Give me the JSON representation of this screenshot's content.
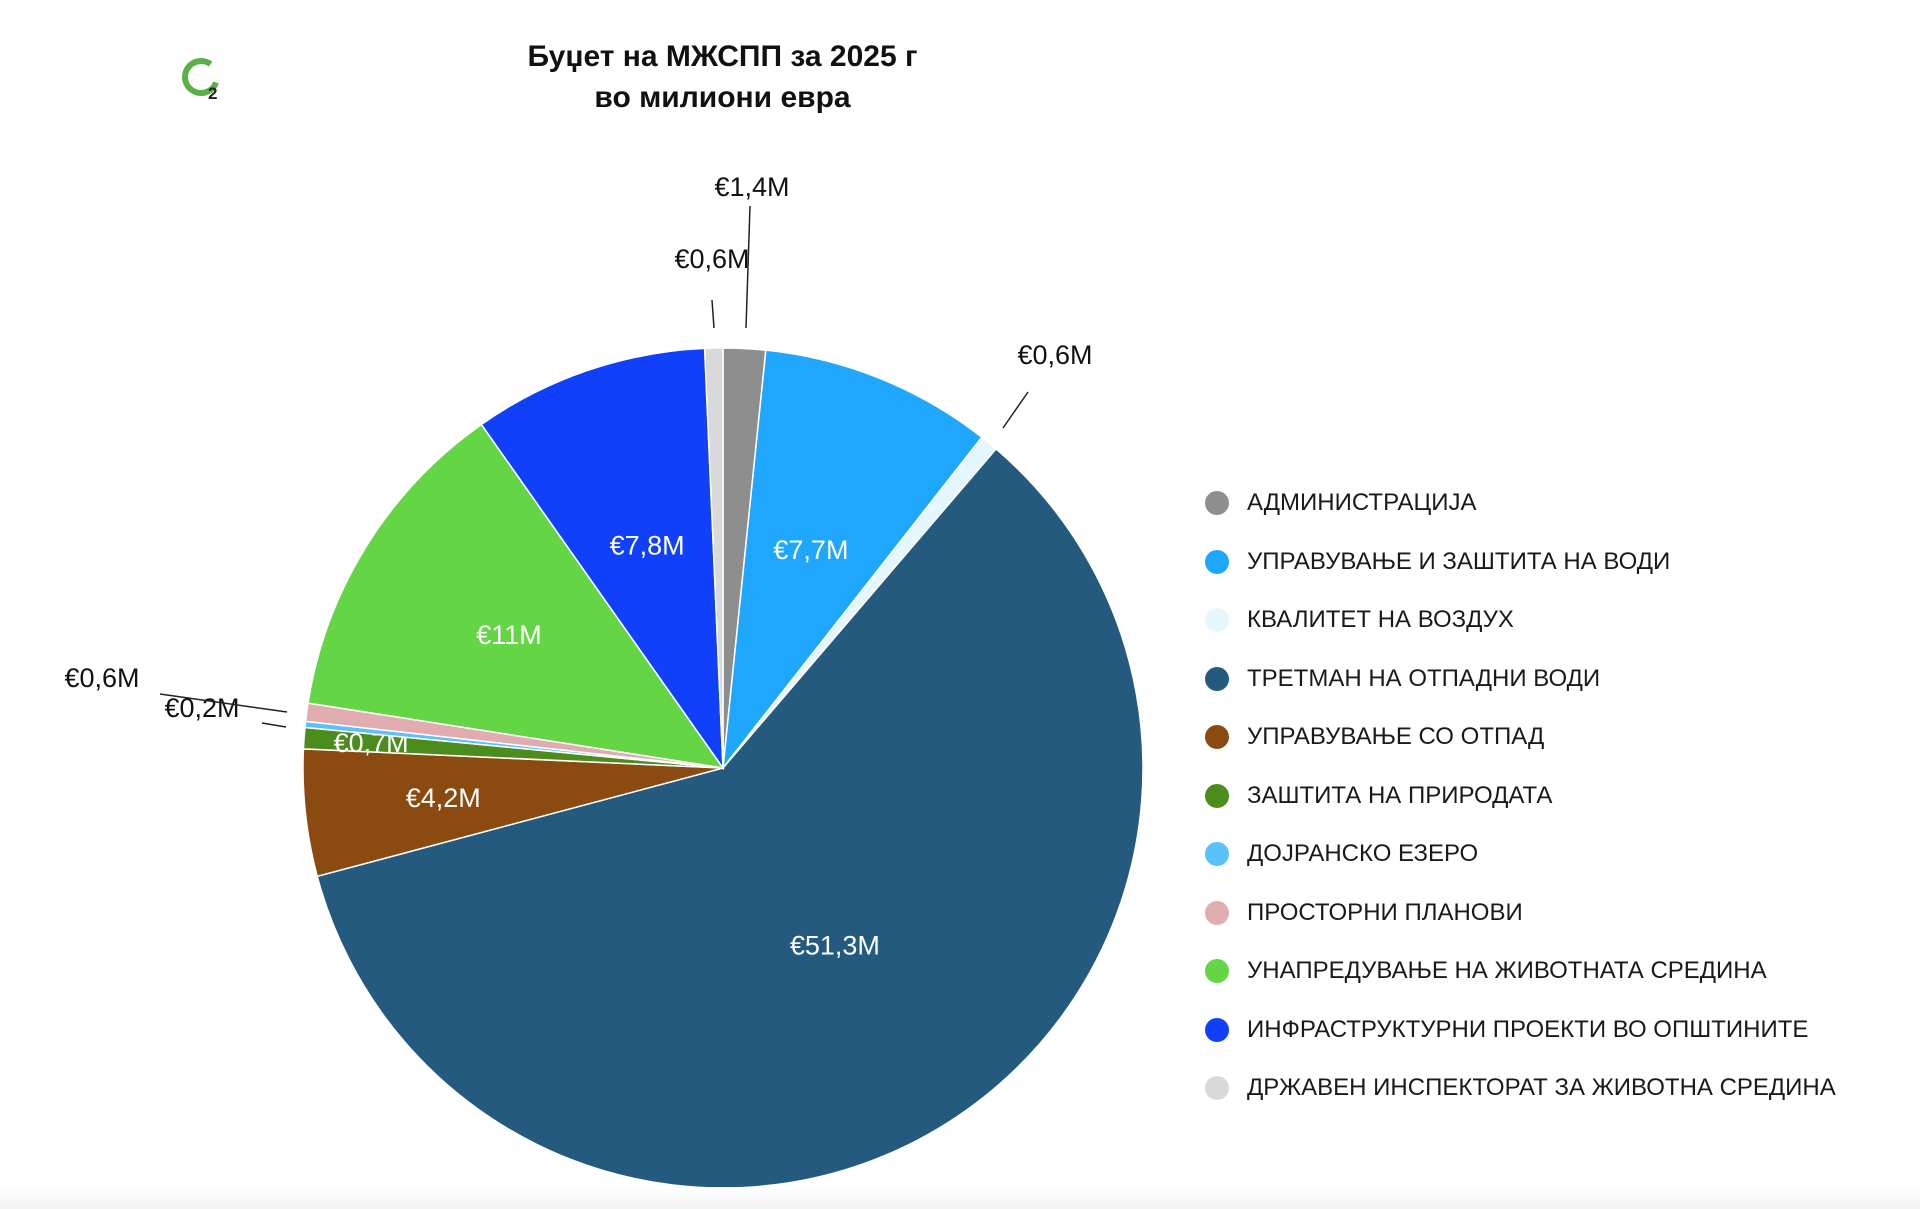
{
  "chart_data": {
    "type": "pie",
    "title": "Буџет на МЖСПП за 2025 г",
    "subtitle": "во милиони евра",
    "legend_position": "right",
    "slices": [
      {
        "name": "АДМИНИСТРАЦИЈА",
        "value": 1.4,
        "label": "€1,4M",
        "color": "#8e8e8e"
      },
      {
        "name": "УПРАВУВАЊЕ И ЗАШТИТА НА ВОДИ",
        "value": 7.7,
        "label": "€7,7M",
        "color": "#1ea7fd"
      },
      {
        "name": "КВАЛИТЕТ НА ВОЗДУХ",
        "value": 0.6,
        "label": "€0,6M",
        "color": "#e6f6fd"
      },
      {
        "name": "ТРЕТМАН НА ОТПАДНИ ВОДИ",
        "value": 51.3,
        "label": "€51,3M",
        "color": "#255a7f"
      },
      {
        "name": "УПРАВУВАЊЕ СО ОТПАД",
        "value": 4.2,
        "label": "€4,2M",
        "color": "#8b4b10"
      },
      {
        "name": "ЗАШТИТА НА ПРИРОДАТА",
        "value": 0.7,
        "label": "€0,7M",
        "color": "#4c8c1d"
      },
      {
        "name": "ДОЈРАНСКО ЕЗЕРО",
        "value": 0.2,
        "label": "€0,2M",
        "color": "#5ac2fa"
      },
      {
        "name": "ПРОСТОРНИ ПЛАНОВИ",
        "value": 0.6,
        "label": "€0,6M",
        "color": "#e1acb0"
      },
      {
        "name": "УНАПРЕДУВАЊЕ НА ЖИВОТНАТА СРЕДИНА",
        "value": 11,
        "label": "€11M",
        "color": "#64d645"
      },
      {
        "name": "ИНФРАСТРУКТУРНИ ПРОЕКТИ ВО ОПШТИНИТЕ",
        "value": 7.8,
        "label": "€7,8M",
        "color": "#1140fb"
      },
      {
        "name": "ДРЖАВЕН ИНСПЕКТОРАТ ЗА ЖИВОТНА СРЕДИНА",
        "value": 0.6,
        "label": "€0,6M",
        "color": "#d9d9d9"
      }
    ]
  },
  "logo": {
    "mark": "O",
    "subscript": "2",
    "color": "#5cb04a"
  }
}
